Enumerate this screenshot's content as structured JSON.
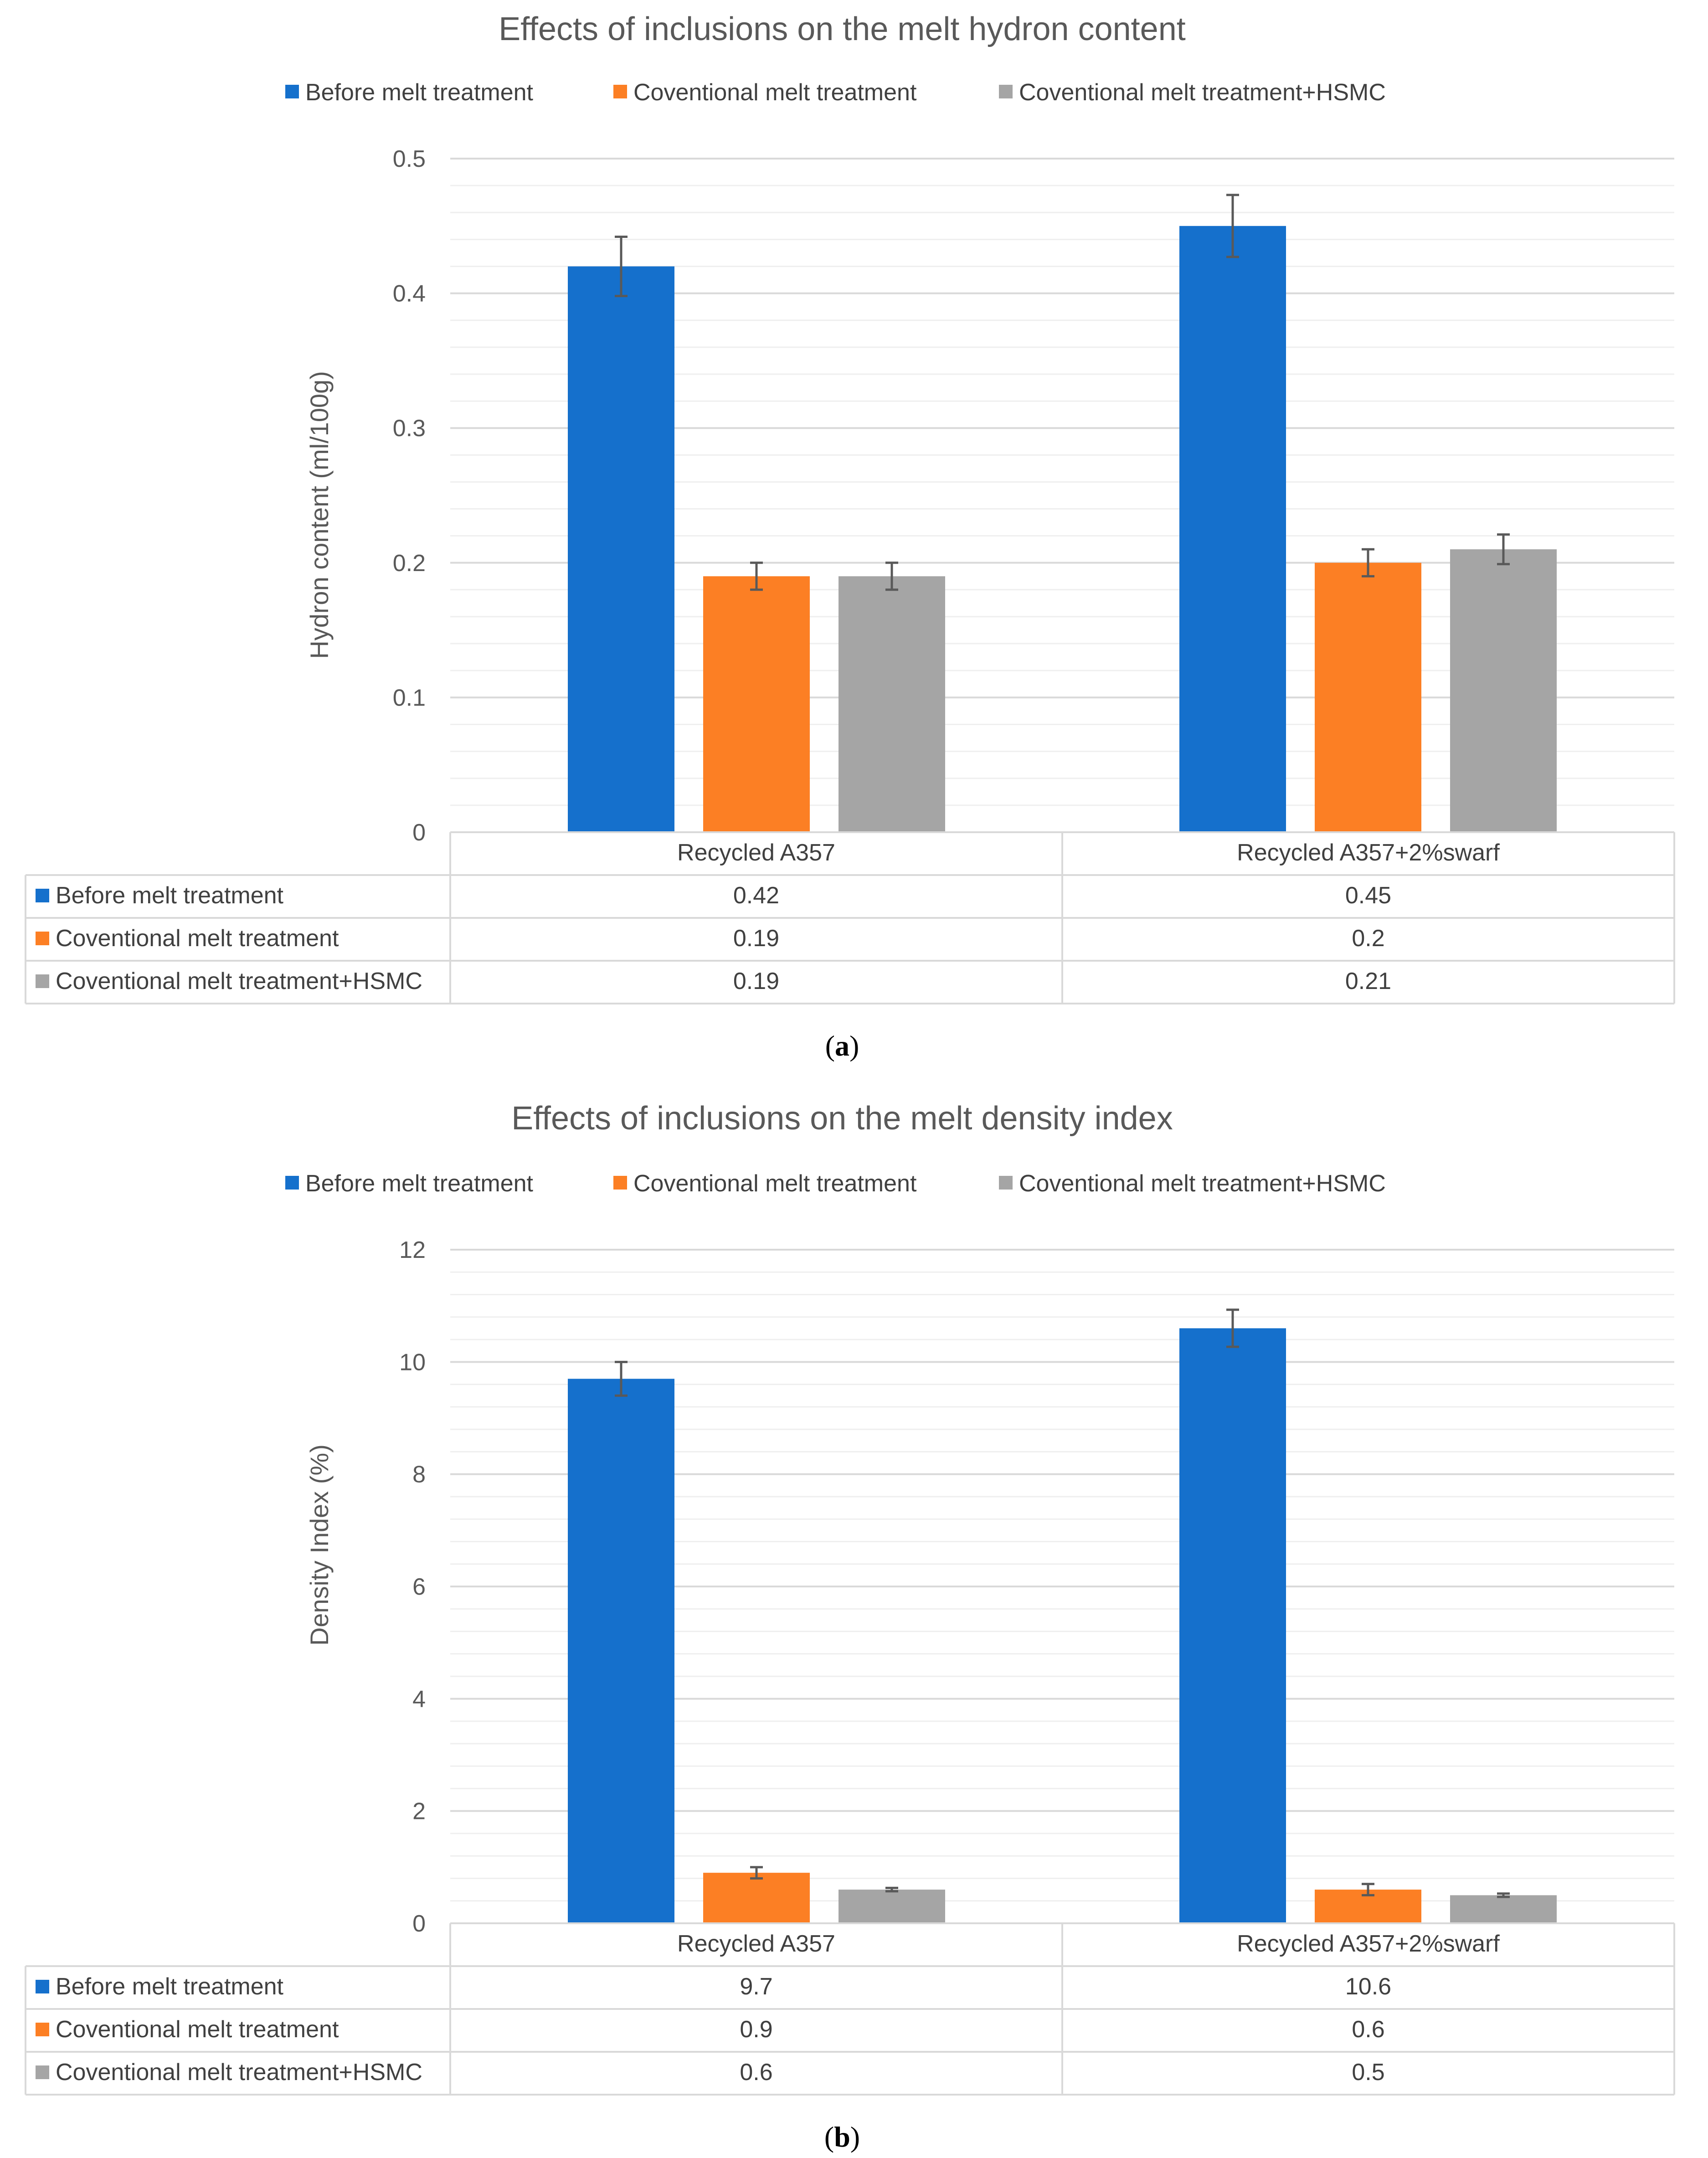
{
  "chart_data": [
    {
      "type": "bar",
      "title": "Effects of inclusions on the melt hydron content",
      "ylabel": "Hydron content (ml/100g)",
      "xlabel": "",
      "ylim": [
        0,
        0.5
      ],
      "yticks": [
        "0",
        "0.1",
        "0.2",
        "0.3",
        "0.4",
        "0.5"
      ],
      "yticks_values": [
        0,
        0.1,
        0.2,
        0.3,
        0.4,
        0.5
      ],
      "grid": true,
      "legend_position": "top",
      "categories": [
        "Recycled A357",
        "Recycled A357+2%swarf"
      ],
      "series": [
        {
          "name": "Before melt treatment",
          "color": "#1570cc",
          "values": [
            0.42,
            0.45
          ],
          "labels": [
            "0.42",
            "0.45"
          ],
          "errors": [
            0.022,
            0.023
          ]
        },
        {
          "name": "Coventional melt treatment",
          "color": "#fc7f24",
          "values": [
            0.19,
            0.2
          ],
          "labels": [
            "0.19",
            "0.2"
          ],
          "errors": [
            0.01,
            0.01
          ]
        },
        {
          "name": "Coventional melt treatment+HSMC",
          "color": "#a5a5a5",
          "values": [
            0.19,
            0.21
          ],
          "labels": [
            "0.19",
            "0.21"
          ],
          "errors": [
            0.01,
            0.011
          ]
        }
      ],
      "caption": "a"
    },
    {
      "type": "bar",
      "title": "Effects of inclusions on the melt density index",
      "ylabel": "Density Index (%)",
      "xlabel": "",
      "ylim": [
        0,
        12
      ],
      "yticks": [
        "0",
        "2",
        "4",
        "6",
        "8",
        "10",
        "12"
      ],
      "yticks_values": [
        0,
        2,
        4,
        6,
        8,
        10,
        12
      ],
      "grid": true,
      "legend_position": "top",
      "categories": [
        "Recycled A357",
        "Recycled A357+2%swarf"
      ],
      "series": [
        {
          "name": "Before melt treatment",
          "color": "#1570cc",
          "values": [
            9.7,
            10.6
          ],
          "labels": [
            "9.7",
            "10.6"
          ],
          "errors": [
            0.3,
            0.33
          ]
        },
        {
          "name": "Coventional melt treatment",
          "color": "#fc7f24",
          "values": [
            0.9,
            0.6
          ],
          "labels": [
            "0.9",
            "0.6"
          ],
          "errors": [
            0.1,
            0.1
          ]
        },
        {
          "name": "Coventional melt treatment+HSMC",
          "color": "#a5a5a5",
          "values": [
            0.6,
            0.5
          ],
          "labels": [
            "0.6",
            "0.5"
          ],
          "errors": [
            0.03,
            0.03
          ]
        }
      ],
      "caption": "b"
    }
  ]
}
